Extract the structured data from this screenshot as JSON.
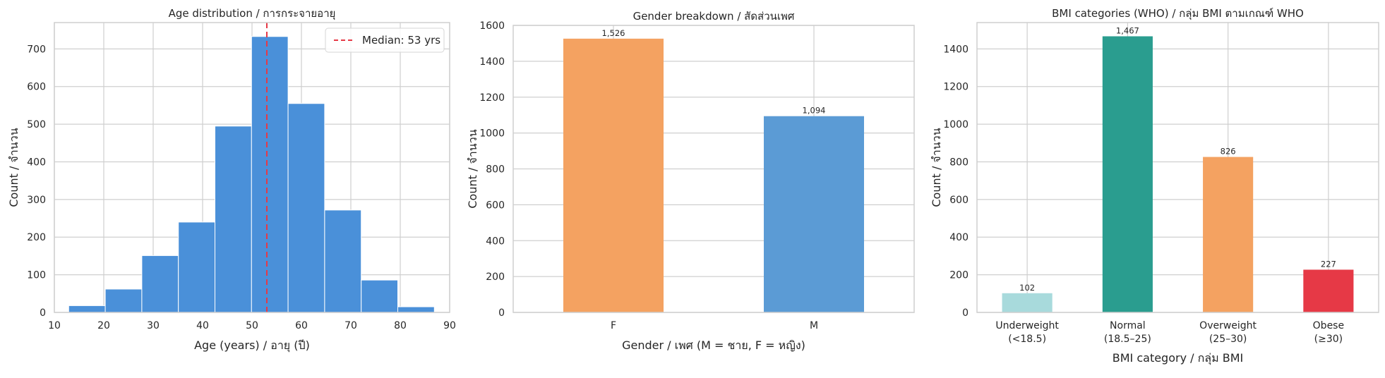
{
  "charts": [
    {
      "type": "histogram",
      "title": "Age distribution / การกระจายอายุ",
      "xlabel": "Age (years) / อายุ (ปี)",
      "ylabel": "Count / จำนวน",
      "xlim": [
        10,
        90
      ],
      "ylim": [
        0,
        770
      ],
      "xticks": [
        10,
        20,
        30,
        40,
        50,
        60,
        70,
        80,
        90
      ],
      "yticks": [
        0,
        100,
        200,
        300,
        400,
        500,
        600,
        700
      ],
      "bins": [
        {
          "start": 12.9,
          "end": 20.3,
          "count": 18
        },
        {
          "start": 20.3,
          "end": 27.7,
          "count": 62
        },
        {
          "start": 27.7,
          "end": 35.1,
          "count": 151
        },
        {
          "start": 35.1,
          "end": 42.5,
          "count": 240
        },
        {
          "start": 42.5,
          "end": 49.9,
          "count": 495
        },
        {
          "start": 49.9,
          "end": 57.3,
          "count": 733
        },
        {
          "start": 57.3,
          "end": 64.7,
          "count": 555
        },
        {
          "start": 64.7,
          "end": 72.1,
          "count": 272
        },
        {
          "start": 72.1,
          "end": 79.5,
          "count": 86
        },
        {
          "start": 79.5,
          "end": 86.9,
          "count": 15
        }
      ],
      "bar_color": "#4a90d9",
      "median": 53,
      "median_color": "#e63946",
      "legend": {
        "label": "Median: 53 yrs",
        "position": "top-right"
      },
      "grid": true
    },
    {
      "type": "bar",
      "title": "Gender breakdown / สัดส่วนเพศ",
      "xlabel": "Gender / เพศ  (M = ชาย, F = หญิง)",
      "ylabel": "Count / จำนวน",
      "ylim": [
        0,
        1600
      ],
      "yticks": [
        0,
        200,
        400,
        600,
        800,
        1000,
        1200,
        1400,
        1600
      ],
      "categories": [
        "F",
        "M"
      ],
      "values": [
        1526,
        1094
      ],
      "value_labels": [
        "1,526",
        "1,094"
      ],
      "colors": [
        "#f4a261",
        "#5b9bd5"
      ],
      "grid": true
    },
    {
      "type": "bar",
      "title": "BMI categories (WHO) / กลุ่ม BMI ตามเกณฑ์ WHO",
      "xlabel": "BMI category / กลุ่ม BMI",
      "ylabel": "Count / จำนวน",
      "ylim": [
        0,
        1540
      ],
      "yticks": [
        0,
        200,
        400,
        600,
        800,
        1000,
        1200,
        1400
      ],
      "categories": [
        [
          "Underweight",
          "(<18.5)"
        ],
        [
          "Normal",
          "(18.5–25)"
        ],
        [
          "Overweight",
          "(25–30)"
        ],
        [
          "Obese",
          "(≥30)"
        ]
      ],
      "values": [
        102,
        1467,
        826,
        227
      ],
      "value_labels": [
        "102",
        "1,467",
        "826",
        "227"
      ],
      "colors": [
        "#a8dadc",
        "#2a9d8f",
        "#f4a261",
        "#e63946"
      ],
      "grid": true
    }
  ]
}
